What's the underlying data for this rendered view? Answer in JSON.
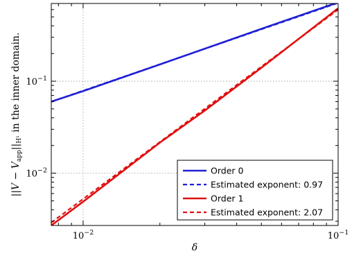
{
  "chart_data": {
    "type": "line",
    "title": "",
    "xlabel": "δ",
    "ylabel": "‖V − V_app‖_H¹ in the inner domain.",
    "ylabel_parts": {
      "lead": "||V − V",
      "sub1": "app",
      "mid": "||",
      "sub2": "H¹",
      "tail": " in the inner domain."
    },
    "x_scale": "log",
    "y_scale": "log",
    "xlim": [
      0.0075,
      0.1
    ],
    "ylim": [
      0.0027,
      0.7
    ],
    "x_ticks": [
      {
        "value": 0.01,
        "base": "10",
        "exp": "−2"
      },
      {
        "value": 0.1,
        "base": "10",
        "exp": "−1"
      }
    ],
    "y_ticks": [
      {
        "value": 0.01,
        "base": "10",
        "exp": "−2"
      },
      {
        "value": 0.1,
        "base": "10",
        "exp": "−1"
      }
    ],
    "grid": true,
    "legend_position": "lower-right",
    "colors": {
      "order0": "#1f1fd6",
      "order1": "#e01010"
    },
    "series": [
      {
        "name": "Order 0",
        "color": "#1f1fd6",
        "dash": false,
        "x": [
          0.0075,
          0.01,
          0.02,
          0.05,
          0.1
        ],
        "y": [
          0.06,
          0.078,
          0.152,
          0.371,
          0.72
        ]
      },
      {
        "name": "Estimated exponent: 0.97",
        "color": "#1f1fd6",
        "dash": true,
        "x": [
          0.0075,
          0.1
        ],
        "y": [
          0.06,
          0.71
        ]
      },
      {
        "name": "Order 1",
        "color": "#e01010",
        "dash": false,
        "x": [
          0.0075,
          0.01,
          0.02,
          0.03,
          0.05,
          0.1
        ],
        "y": [
          0.0027,
          0.0049,
          0.0215,
          0.048,
          0.14,
          0.62
        ]
      },
      {
        "name": "Estimated exponent: 2.07",
        "color": "#e01010",
        "dash": true,
        "x": [
          0.0075,
          0.1
        ],
        "y": [
          0.0029,
          0.6
        ]
      }
    ]
  }
}
